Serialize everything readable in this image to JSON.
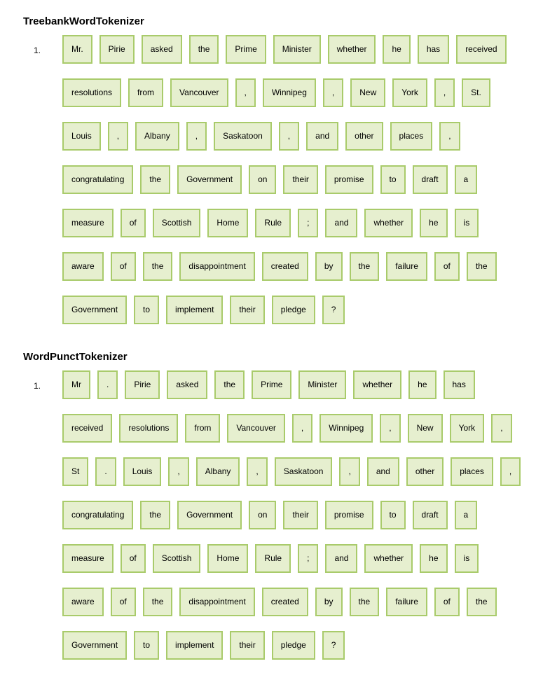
{
  "sections": [
    {
      "title": "TreebankWordTokenizer",
      "list_number": "1.",
      "tokens": [
        "Mr.",
        "Pirie",
        "asked",
        "the",
        "Prime",
        "Minister",
        "whether",
        "he",
        "has",
        "received",
        "resolutions",
        "from",
        "Vancouver",
        ",",
        "Winnipeg",
        ",",
        "New",
        "York",
        ",",
        "St.",
        "Louis",
        ",",
        "Albany",
        ",",
        "Saskatoon",
        ",",
        "and",
        "other",
        "places",
        ",",
        "congratulating",
        "the",
        "Government",
        "on",
        "their",
        "promise",
        "to",
        "draft",
        "a",
        "measure",
        "of",
        "Scottish",
        "Home",
        "Rule",
        ";",
        "and",
        "whether",
        "he",
        "is",
        "aware",
        "of",
        "the",
        "disappointment",
        "created",
        "by",
        "the",
        "failure",
        "of",
        "the",
        "Government",
        "to",
        "implement",
        "their",
        "pledge",
        "?"
      ]
    },
    {
      "title": "WordPunctTokenizer",
      "list_number": "1.",
      "tokens": [
        "Mr",
        ".",
        "Pirie",
        "asked",
        "the",
        "Prime",
        "Minister",
        "whether",
        "he",
        "has",
        "received",
        "resolutions",
        "from",
        "Vancouver",
        ",",
        "Winnipeg",
        ",",
        "New",
        "York",
        ",",
        "St",
        ".",
        "Louis",
        ",",
        "Albany",
        ",",
        "Saskatoon",
        ",",
        "and",
        "other",
        "places",
        ",",
        "congratulating",
        "the",
        "Government",
        "on",
        "their",
        "promise",
        "to",
        "draft",
        "a",
        "measure",
        "of",
        "Scottish",
        "Home",
        "Rule",
        ";",
        "and",
        "whether",
        "he",
        "is",
        "aware",
        "of",
        "the",
        "disappointment",
        "created",
        "by",
        "the",
        "failure",
        "of",
        "the",
        "Government",
        "to",
        "implement",
        "their",
        "pledge",
        "?"
      ]
    }
  ]
}
